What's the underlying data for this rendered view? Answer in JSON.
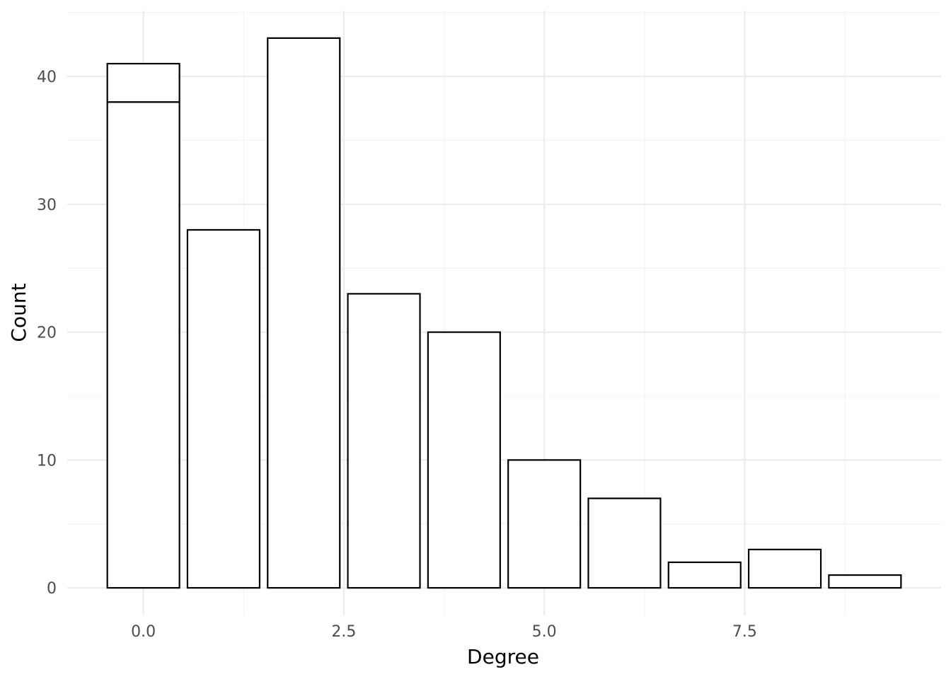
{
  "chart_data": {
    "type": "bar",
    "title": "",
    "xlabel": "Degree",
    "ylabel": "Count",
    "x": [
      0,
      1,
      2,
      3,
      4,
      5,
      6,
      7,
      8,
      9
    ],
    "series": [
      {
        "values": [
          38,
          28,
          43,
          23,
          20,
          10,
          7,
          2,
          3,
          1
        ]
      },
      {
        "values": [
          3,
          0,
          0,
          0,
          0,
          0,
          0,
          0,
          0,
          0
        ]
      }
    ],
    "stacked": true,
    "bar_width": 0.9,
    "xlim": [
      -0.95,
      9.95
    ],
    "ylim": [
      -2.15,
      45.15
    ],
    "x_ticks": [
      0,
      2.5,
      5,
      7.5
    ],
    "x_tick_labels": [
      "0.0",
      "2.5",
      "5.0",
      "7.5"
    ],
    "y_ticks": [
      0,
      10,
      20,
      30,
      40
    ],
    "y_tick_labels": [
      "0",
      "10",
      "20",
      "30",
      "40"
    ],
    "grid": true,
    "legend": "none",
    "colors": {
      "bar_fill": "#ffffff",
      "bar_stroke": "#000000",
      "grid": "#ebebeb",
      "background": "#ffffff"
    }
  }
}
